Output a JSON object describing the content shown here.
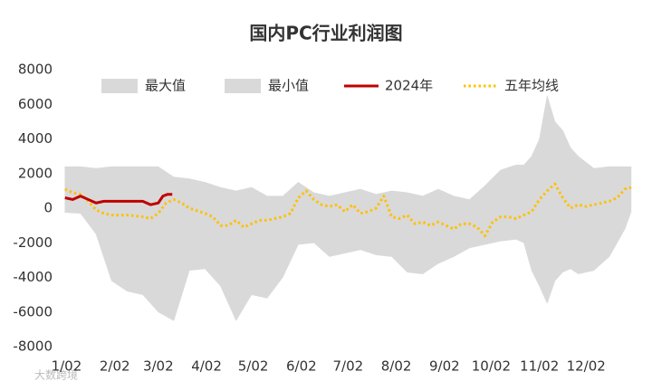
{
  "chart_data": {
    "type": "line",
    "title": "国内PC行业利润图",
    "xlim": [
      -1,
      364
    ],
    "xticks": [
      {
        "value": 1,
        "label": "1/02"
      },
      {
        "value": 32,
        "label": "2/02"
      },
      {
        "value": 60,
        "label": "3/02"
      },
      {
        "value": 91,
        "label": "4/02"
      },
      {
        "value": 121,
        "label": "5/02"
      },
      {
        "value": 152,
        "label": "6/02"
      },
      {
        "value": 182,
        "label": "7/02"
      },
      {
        "value": 213,
        "label": "8/02"
      },
      {
        "value": 244,
        "label": "9/02"
      },
      {
        "value": 274,
        "label": "10/02"
      },
      {
        "value": 305,
        "label": "11/02"
      },
      {
        "value": 335,
        "label": "12/02"
      }
    ],
    "ylim": [
      -8000,
      8000
    ],
    "yticks": [
      -8000,
      -6000,
      -4000,
      -2000,
      0,
      2000,
      4000,
      6000,
      8000
    ],
    "series": [
      {
        "name": "最大值",
        "kind": "area",
        "color": "#d9d9d9",
        "x": [
          0,
          10,
          20,
          30,
          40,
          50,
          60,
          70,
          80,
          90,
          100,
          110,
          120,
          130,
          140,
          150,
          160,
          170,
          180,
          190,
          200,
          210,
          220,
          230,
          240,
          250,
          260,
          270,
          280,
          290,
          295,
          300,
          305,
          310,
          315,
          320,
          325,
          330,
          340,
          350,
          360,
          364
        ],
        "values": [
          2400,
          2400,
          2300,
          2400,
          2400,
          2400,
          2400,
          1800,
          1700,
          1500,
          1200,
          1000,
          1200,
          700,
          700,
          1500,
          900,
          700,
          900,
          1100,
          800,
          1000,
          900,
          700,
          1100,
          700,
          500,
          1300,
          2200,
          2500,
          2500,
          3000,
          4000,
          6500,
          5000,
          4500,
          3500,
          3000,
          2300,
          2400,
          2400,
          2400
        ]
      },
      {
        "name": "最小值",
        "kind": "area",
        "color": "#d9d9d9",
        "x": [
          0,
          10,
          20,
          30,
          40,
          50,
          60,
          70,
          80,
          90,
          100,
          110,
          120,
          130,
          140,
          150,
          160,
          170,
          180,
          190,
          200,
          210,
          220,
          230,
          240,
          250,
          260,
          270,
          280,
          290,
          295,
          300,
          305,
          310,
          315,
          320,
          325,
          330,
          340,
          350,
          360,
          364
        ],
        "values": [
          -250,
          -300,
          -1500,
          -4200,
          -4800,
          -5000,
          -6000,
          -6500,
          -3600,
          -3500,
          -4500,
          -6500,
          -5000,
          -5200,
          -4000,
          -2100,
          -2000,
          -2800,
          -2600,
          -2400,
          -2700,
          -2800,
          -3700,
          -3800,
          -3200,
          -2800,
          -2300,
          -2100,
          -1900,
          -1800,
          -2000,
          -3600,
          -4500,
          -5500,
          -4200,
          -3700,
          -3500,
          -3800,
          -3600,
          -2800,
          -1200,
          -200
        ]
      },
      {
        "name": "2024年",
        "kind": "line",
        "color": "#c00000",
        "x": [
          0,
          5,
          10,
          15,
          20,
          25,
          30,
          40,
          50,
          55,
          60,
          63,
          66,
          69
        ],
        "values": [
          600,
          500,
          700,
          500,
          300,
          400,
          400,
          400,
          400,
          200,
          300,
          700,
          800,
          800
        ]
      },
      {
        "name": "五年均线",
        "kind": "line",
        "dash": "dotted",
        "color": "#ffc000",
        "x": [
          0,
          5,
          10,
          15,
          20,
          25,
          30,
          40,
          50,
          55,
          60,
          65,
          70,
          75,
          80,
          90,
          95,
          100,
          105,
          110,
          115,
          120,
          125,
          130,
          140,
          145,
          150,
          155,
          160,
          165,
          170,
          175,
          180,
          185,
          190,
          195,
          200,
          205,
          210,
          215,
          220,
          225,
          230,
          235,
          240,
          245,
          250,
          255,
          260,
          265,
          270,
          275,
          280,
          285,
          290,
          295,
          300,
          305,
          310,
          315,
          320,
          325,
          330,
          335,
          340,
          345,
          350,
          355,
          360,
          364
        ],
        "values": [
          1100,
          900,
          800,
          400,
          -100,
          -300,
          -400,
          -400,
          -500,
          -600,
          -300,
          300,
          500,
          300,
          0,
          -300,
          -500,
          -1000,
          -1000,
          -700,
          -1100,
          -900,
          -700,
          -700,
          -500,
          -300,
          600,
          1000,
          500,
          200,
          100,
          200,
          -200,
          200,
          -300,
          -200,
          0,
          700,
          -500,
          -600,
          -400,
          -900,
          -800,
          -1000,
          -800,
          -1000,
          -1200,
          -900,
          -900,
          -1100,
          -1600,
          -800,
          -500,
          -500,
          -600,
          -400,
          -200,
          500,
          1000,
          1400,
          600,
          0,
          200,
          100,
          200,
          300,
          400,
          600,
          1100,
          1200
        ]
      }
    ],
    "watermark": "大数跨境"
  }
}
